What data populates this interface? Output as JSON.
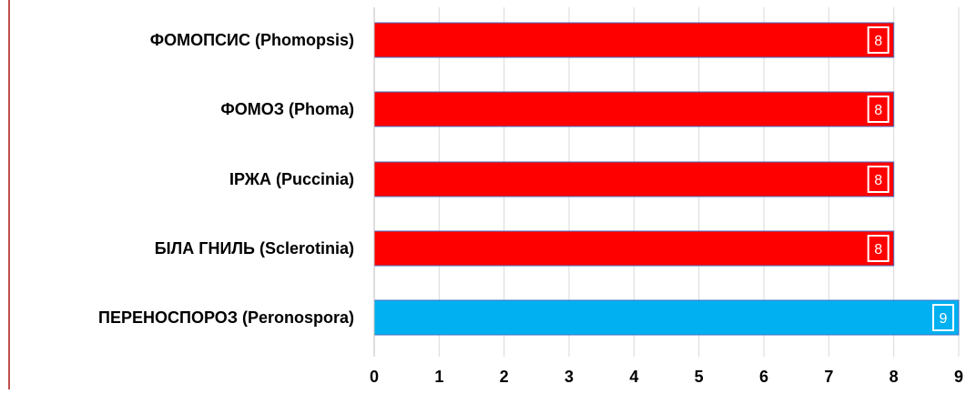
{
  "chart_data": {
    "type": "bar",
    "orientation": "horizontal",
    "categories": [
      "ФОМОПСИС (Phomopsis)",
      "ФОМОЗ (Phoma)",
      "ІРЖА (Puccinia)",
      "БІЛА ГНИЛЬ (Sclerotinia)",
      "ПЕРЕНОСПОРОЗ (Peronospora)"
    ],
    "values": [
      8,
      8,
      8,
      8,
      9
    ],
    "data_labels": [
      "8",
      "8",
      "8",
      "8",
      "9"
    ],
    "bar_colors": [
      "#ff0000",
      "#ff0000",
      "#ff0000",
      "#ff0000",
      "#00b0f0"
    ],
    "title": "",
    "xlabel": "",
    "ylabel": "",
    "xlim": [
      0,
      9
    ],
    "x_ticks": [
      0,
      1,
      2,
      3,
      4,
      5,
      6,
      7,
      8,
      9
    ],
    "grid": true,
    "legend": "none"
  }
}
